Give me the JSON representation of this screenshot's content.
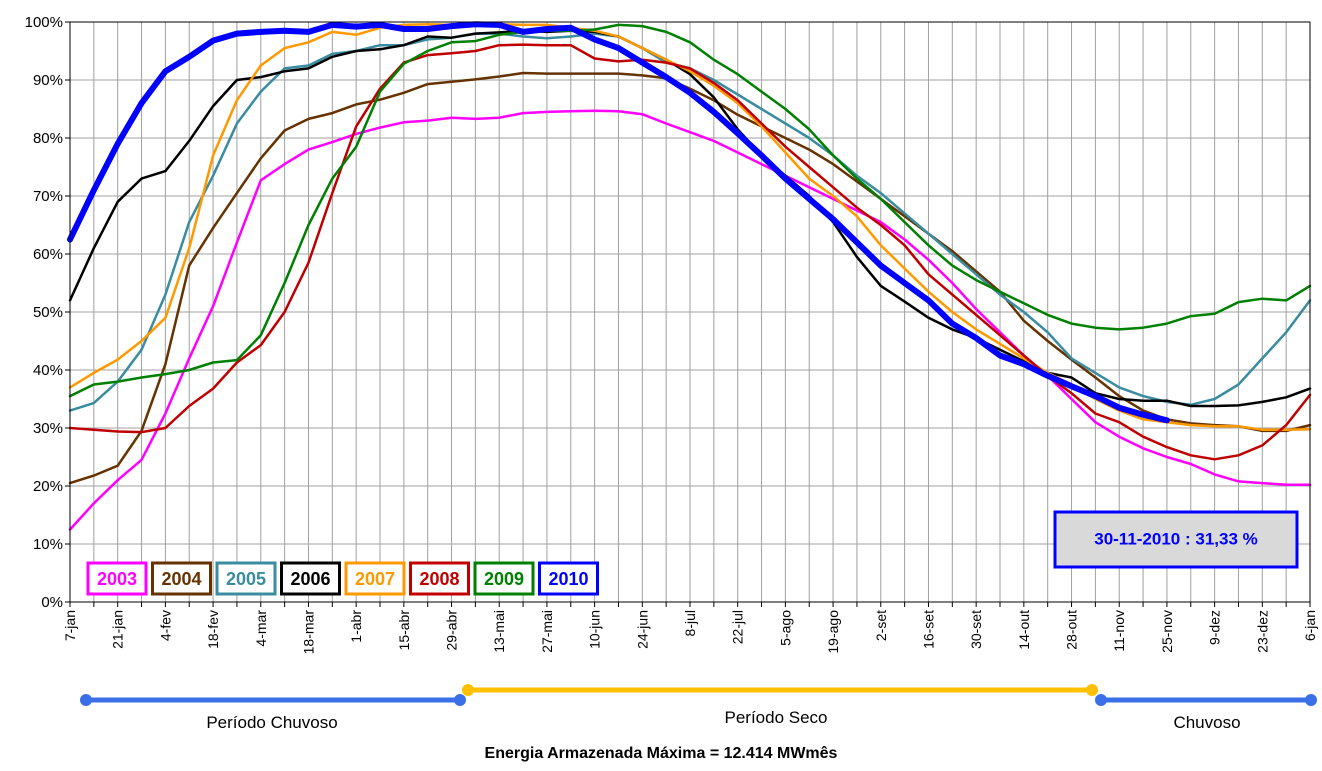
{
  "chart_data": {
    "type": "line",
    "categories": [
      "7-jan",
      null,
      "21-jan",
      null,
      "4-fev",
      null,
      "18-fev",
      null,
      "4-mar",
      null,
      "18-mar",
      null,
      "1-abr",
      null,
      "15-abr",
      null,
      "29-abr",
      null,
      "13-mai",
      null,
      "27-mai",
      null,
      "10-jun",
      null,
      "24-jun",
      null,
      "8-jul",
      null,
      "22-jul",
      null,
      "5-ago",
      null,
      "19-ago",
      null,
      "2-set",
      null,
      "16-set",
      null,
      "30-set",
      null,
      "14-out",
      null,
      "28-out",
      null,
      "11-nov",
      null,
      "25-nov",
      null,
      "9-dez",
      null,
      "23-dez",
      null,
      "6-jan"
    ],
    "ylim": [
      0,
      100
    ],
    "yticks": [
      {
        "value": 0,
        "label": "0%"
      },
      {
        "value": 10,
        "label": "10%"
      },
      {
        "value": 20,
        "label": "20%"
      },
      {
        "value": 30,
        "label": "30%"
      },
      {
        "value": 40,
        "label": "40%"
      },
      {
        "value": 50,
        "label": "50%"
      },
      {
        "value": 60,
        "label": "60%"
      },
      {
        "value": 70,
        "label": "70%"
      },
      {
        "value": 80,
        "label": "80%"
      },
      {
        "value": 90,
        "label": "90%"
      },
      {
        "value": 100,
        "label": "100%"
      }
    ],
    "grid": true,
    "series": [
      {
        "name": "2003",
        "color": "#ff00ff",
        "values": [
          12.5,
          17,
          21,
          24.5,
          32.5,
          42,
          51,
          62,
          72.7,
          75.5,
          78,
          79.3,
          80.7,
          81.8,
          82.7,
          83,
          83.5,
          83.3,
          83.5,
          84.3,
          84.5,
          84.6,
          84.7,
          84.6,
          84.1,
          82.5,
          81,
          79.5,
          77.5,
          75.5,
          73.5,
          71.5,
          69.5,
          67.5,
          65.5,
          62.5,
          59,
          55,
          50.5,
          46.5,
          42.5,
          39,
          35,
          31,
          28.5,
          26.5,
          25,
          23.8,
          22,
          20.8,
          20.5,
          20.2,
          20.2
        ]
      },
      {
        "name": "2004",
        "color": "#663300",
        "values": [
          20.5,
          21.8,
          23.5,
          29.5,
          41,
          58,
          64.5,
          70.5,
          76.5,
          81.3,
          83.3,
          84.3,
          85.8,
          86.6,
          87.8,
          89.3,
          89.7,
          90.1,
          90.6,
          91.2,
          91.1,
          91.1,
          91.1,
          91.1,
          90.8,
          90.3,
          88.5,
          86.5,
          84,
          82,
          80,
          78,
          75.5,
          72.5,
          69.5,
          66.5,
          63.5,
          60.5,
          57,
          53.5,
          48.5,
          45,
          41.8,
          38.7,
          35.5,
          33,
          31.5,
          30.8,
          30.5,
          30.3,
          29.5,
          29.5,
          30.5
        ]
      },
      {
        "name": "2005",
        "color": "#3a8ca0",
        "values": [
          33,
          34.3,
          38,
          43.5,
          53,
          65.5,
          73.5,
          82.5,
          88,
          92,
          92.5,
          94.5,
          95,
          96,
          96,
          97,
          97.3,
          98,
          98,
          97.5,
          97.2,
          97.5,
          98,
          97.5,
          95.5,
          93,
          92,
          90,
          87.5,
          85,
          82.5,
          80,
          77,
          73.5,
          70.5,
          67,
          63.5,
          60,
          56.5,
          53,
          50,
          46.5,
          42,
          39.5,
          37,
          35.5,
          34.5,
          34,
          35,
          37.5,
          42,
          46.5,
          52
        ]
      },
      {
        "name": "2006",
        "color": "#000000",
        "values": [
          52,
          61,
          69,
          73,
          74.3,
          79.5,
          85.5,
          90,
          90.5,
          91.5,
          92,
          94,
          95,
          95.3,
          96,
          97.5,
          97.3,
          98,
          98.2,
          98.5,
          98.3,
          98.5,
          98.3,
          97.5,
          95.5,
          93.5,
          91,
          87,
          81.5,
          77,
          73.5,
          70,
          65.5,
          59.5,
          54.5,
          51.8,
          49,
          47,
          45.5,
          43.5,
          41.5,
          39.5,
          38.7,
          36,
          35,
          34.7,
          34.7,
          33.8,
          33.8,
          33.9,
          34.5,
          35.3,
          36.8
        ]
      },
      {
        "name": "2007",
        "color": "#ff9900",
        "values": [
          37,
          39.5,
          41.8,
          45,
          49,
          61,
          77,
          86.5,
          92.5,
          95.5,
          96.5,
          98.3,
          97.8,
          99,
          99.5,
          99.6,
          99.5,
          99.5,
          99.6,
          99.5,
          99.5,
          99,
          98.5,
          97.5,
          95.5,
          93.5,
          91.5,
          89,
          86,
          82,
          77.5,
          73,
          70,
          66.5,
          61.5,
          57.5,
          53.5,
          50,
          47,
          44.5,
          42,
          39.5,
          37.5,
          35,
          33,
          31.5,
          31,
          30.5,
          30.3,
          30.3,
          29.7,
          29.7,
          29.8
        ]
      },
      {
        "name": "2008",
        "color": "#c00000",
        "values": [
          30,
          29.7,
          29.4,
          29.3,
          30,
          33.8,
          36.8,
          41.3,
          44.3,
          50,
          58.5,
          70.5,
          82,
          88.5,
          93,
          94.3,
          94.6,
          95,
          96,
          96.1,
          96,
          96,
          93.7,
          93.2,
          93.5,
          93,
          92,
          89.5,
          86.5,
          82.5,
          78.5,
          75,
          71.5,
          68,
          65,
          61.5,
          56.5,
          53,
          49.5,
          46,
          42.5,
          39,
          36,
          32.5,
          31,
          28.5,
          26.7,
          25.3,
          24.6,
          25.3,
          27,
          30.5,
          35.7
        ]
      },
      {
        "name": "2009",
        "color": "#008000",
        "values": [
          35.5,
          37.5,
          38,
          38.7,
          39.3,
          40,
          41.3,
          41.7,
          46,
          55,
          65,
          73,
          78.5,
          88,
          92.8,
          95,
          96.5,
          96.7,
          97.8,
          98.3,
          98.5,
          98.5,
          98.7,
          99.5,
          99.3,
          98.3,
          96.5,
          93.5,
          91,
          88,
          85,
          81.5,
          77,
          73,
          69.5,
          65.5,
          61.5,
          58,
          55.5,
          53.5,
          51.5,
          49.5,
          48,
          47.3,
          47,
          47.3,
          48,
          49.3,
          49.7,
          51.7,
          52.3,
          52,
          54.5
        ]
      },
      {
        "name": "2010",
        "color": "#0000ff",
        "values": [
          62.5,
          71,
          79,
          86,
          91.5,
          94,
          96.8,
          98,
          98.3,
          98.5,
          98.3,
          99.5,
          99.2,
          99.5,
          98.8,
          98.8,
          99.3,
          99.6,
          99.5,
          98.3,
          98.8,
          99,
          97,
          95.5,
          93,
          90.5,
          87.8,
          84.5,
          80.8,
          77,
          73,
          69.5,
          66,
          62,
          58,
          55,
          52,
          48,
          45.5,
          42.5,
          41,
          39,
          37.2,
          35.5,
          33.5,
          32.3,
          31.33,
          null,
          null,
          null,
          null,
          null,
          null
        ]
      }
    ],
    "annotation": "30-11-2010 : 31,33 %",
    "periods": [
      "Período Chuvoso",
      "Período Seco",
      "Chuvoso"
    ],
    "note": "Energia Armazenada Máxima = 12.414 MWmês"
  }
}
